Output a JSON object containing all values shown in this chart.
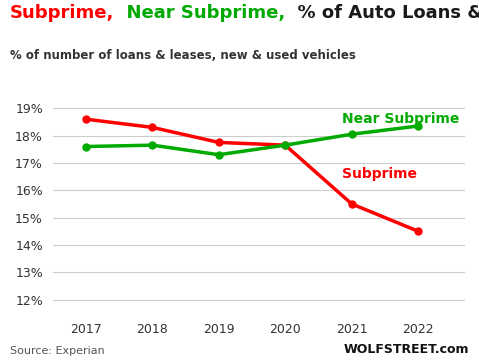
{
  "years": [
    2017,
    2018,
    2019,
    2020,
    2021,
    2022
  ],
  "subprime": [
    18.6,
    18.3,
    17.75,
    17.65,
    15.5,
    14.5
  ],
  "near_subprime": [
    17.6,
    17.65,
    17.3,
    17.65,
    18.05,
    18.35
  ],
  "subprime_color": "#ff0000",
  "near_subprime_color": "#00aa00",
  "black_color": "#1a1a1a",
  "title_part1": "Subprime,",
  "title_part2": "  Near Subprime,",
  "title_part3": "  % of Auto Loans & Leases",
  "subtitle": "% of number of loans & leases, new & used vehicles",
  "subprime_label": "Subprime",
  "near_subprime_label": "Near Subprime",
  "source_text": "Source: Experian",
  "watermark": "WOLFSTREET.com",
  "ylim": [
    11.5,
    19.8
  ],
  "yticks": [
    12,
    13,
    14,
    15,
    16,
    17,
    18,
    19
  ],
  "background_color": "#ffffff",
  "grid_color": "#cccccc",
  "line_width": 2.5,
  "marker_size": 5,
  "title_fontsize": 13,
  "subtitle_fontsize": 8.5,
  "label_fontsize": 10
}
